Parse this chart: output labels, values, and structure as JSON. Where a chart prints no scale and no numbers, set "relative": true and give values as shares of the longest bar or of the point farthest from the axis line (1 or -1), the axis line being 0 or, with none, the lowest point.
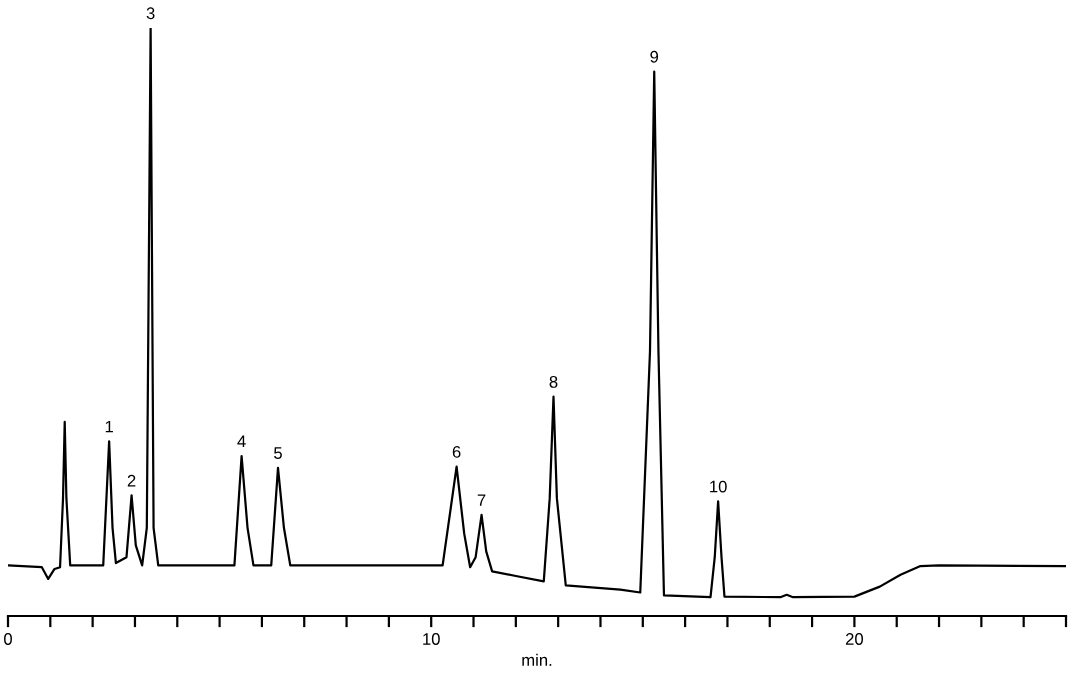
{
  "chart_data": {
    "type": "line",
    "relative": true,
    "xlabel": "min.",
    "xlim": [
      0,
      25
    ],
    "xticks": [
      0,
      {
        "value": 1,
        "label": null
      },
      {
        "value": 2,
        "label": null
      },
      {
        "value": 3,
        "label": null
      },
      {
        "value": 4,
        "label": null
      },
      {
        "value": 5,
        "label": null
      },
      {
        "value": 6,
        "label": null
      },
      {
        "value": 7,
        "label": null
      },
      {
        "value": 8,
        "label": null
      },
      {
        "value": 9,
        "label": null
      },
      10,
      {
        "value": 11,
        "label": null
      },
      {
        "value": 12,
        "label": null
      },
      {
        "value": 13,
        "label": null
      },
      {
        "value": 14,
        "label": null
      },
      {
        "value": 15,
        "label": null
      },
      {
        "value": 16,
        "label": null
      },
      {
        "value": 17,
        "label": null
      },
      {
        "value": 18,
        "label": null
      },
      {
        "value": 19,
        "label": null
      },
      20,
      {
        "value": 21,
        "label": null
      },
      {
        "value": 22,
        "label": null
      },
      {
        "value": 23,
        "label": null
      },
      {
        "value": 24,
        "label": null
      },
      {
        "value": 25,
        "label": null
      }
    ],
    "tick_labels": "x",
    "grid": false,
    "legend": false,
    "marker": "none",
    "line_style": "solid",
    "series": [
      {
        "color": "#000000",
        "x": [
          0,
          0.8,
          0.95,
          1.1,
          1.23,
          1.3,
          1.34,
          1.38,
          1.47,
          2.25,
          2.39,
          2.47,
          2.55,
          2.8,
          2.92,
          3.02,
          3.17,
          3.28,
          3.37,
          3.44,
          3.55,
          5.35,
          5.52,
          5.66,
          5.8,
          6.22,
          6.38,
          6.52,
          6.67,
          10.27,
          10.6,
          10.78,
          10.92,
          11.05,
          11.19,
          11.3,
          11.44,
          12.0,
          12.66,
          12.8,
          12.89,
          12.97,
          13.18,
          14.47,
          14.94,
          15.17,
          15.27,
          15.37,
          15.5,
          16.6,
          16.7,
          16.78,
          16.86,
          16.93,
          18.25,
          18.4,
          18.55,
          20.0,
          20.6,
          21.09,
          21.56,
          22.0,
          25.0
        ],
        "values": [
          0.086,
          0.083,
          0.063,
          0.08,
          0.083,
          0.2,
          0.33,
          0.2,
          0.086,
          0.086,
          0.297,
          0.15,
          0.09,
          0.1,
          0.205,
          0.12,
          0.086,
          0.15,
          1.0,
          0.15,
          0.086,
          0.086,
          0.272,
          0.15,
          0.086,
          0.086,
          0.252,
          0.15,
          0.086,
          0.086,
          0.254,
          0.14,
          0.083,
          0.1,
          0.172,
          0.11,
          0.076,
          0.068,
          0.059,
          0.2,
          0.373,
          0.2,
          0.052,
          0.045,
          0.04,
          0.45,
          0.926,
          0.45,
          0.035,
          0.032,
          0.1,
          0.195,
          0.1,
          0.033,
          0.032,
          0.036,
          0.032,
          0.033,
          0.05,
          0.07,
          0.085,
          0.086,
          0.085
        ]
      }
    ],
    "annotations": [
      {
        "text": "1",
        "x": 2.39,
        "y": 0.297
      },
      {
        "text": "2",
        "x": 2.92,
        "y": 0.205
      },
      {
        "text": "3",
        "x": 3.37,
        "y": 1.0
      },
      {
        "text": "4",
        "x": 5.52,
        "y": 0.272
      },
      {
        "text": "5",
        "x": 6.38,
        "y": 0.252
      },
      {
        "text": "6",
        "x": 10.6,
        "y": 0.254
      },
      {
        "text": "7",
        "x": 11.19,
        "y": 0.172
      },
      {
        "text": "8",
        "x": 12.89,
        "y": 0.373
      },
      {
        "text": "9",
        "x": 15.27,
        "y": 0.926
      },
      {
        "text": "10",
        "x": 16.78,
        "y": 0.195
      }
    ]
  }
}
